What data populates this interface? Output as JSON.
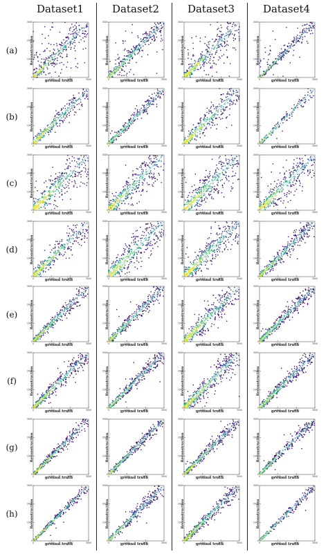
{
  "figure": {
    "columns": [
      "Dataset1",
      "Dataset2",
      "Dataset3",
      "Dataset4"
    ],
    "rows": [
      "(a)",
      "(b)",
      "(c)",
      "(d)",
      "(e)",
      "(f)",
      "(g)",
      "(h)"
    ],
    "xlabel": "ground truth",
    "ylabel": "Reconstruction"
  },
  "chart_data": {
    "type": "heatmap",
    "layout": "grid",
    "colormap": [
      "#3b0f70",
      "#2c3e8f",
      "#2a788e",
      "#22a884",
      "#7ad151",
      "#fde725"
    ],
    "diagonal_reference": true,
    "axes": {
      "xlim": [
        0,
        3000
      ],
      "ylim": [
        0,
        3000
      ],
      "xticks": [
        0,
        1000,
        2000,
        3000
      ],
      "yticks": [
        0,
        1000,
        2000,
        3000
      ]
    },
    "panels": [
      {
        "row": "(a)",
        "dataset": "Dataset1",
        "density": 1.0,
        "spread": 0.1,
        "outlier_fraction": 0.35
      },
      {
        "row": "(a)",
        "dataset": "Dataset2",
        "density": 1.0,
        "spread": 0.08,
        "outlier_fraction": 0.3
      },
      {
        "row": "(a)",
        "dataset": "Dataset3",
        "density": 1.0,
        "spread": 0.12,
        "outlier_fraction": 0.3
      },
      {
        "row": "(a)",
        "dataset": "Dataset4",
        "density": 0.8,
        "spread": 0.04,
        "outlier_fraction": 0.2
      },
      {
        "row": "(b)",
        "dataset": "Dataset1",
        "density": 0.7,
        "spread": 0.1,
        "outlier_fraction": 0.02
      },
      {
        "row": "(b)",
        "dataset": "Dataset2",
        "density": 0.7,
        "spread": 0.06,
        "outlier_fraction": 0.02
      },
      {
        "row": "(b)",
        "dataset": "Dataset3",
        "density": 0.8,
        "spread": 0.14,
        "outlier_fraction": 0.03
      },
      {
        "row": "(b)",
        "dataset": "Dataset4",
        "density": 0.4,
        "spread": 0.05,
        "outlier_fraction": 0.01
      },
      {
        "row": "(c)",
        "dataset": "Dataset1",
        "density": 1.0,
        "spread": 0.2,
        "outlier_fraction": 0.05
      },
      {
        "row": "(c)",
        "dataset": "Dataset2",
        "density": 1.0,
        "spread": 0.16,
        "outlier_fraction": 0.05
      },
      {
        "row": "(c)",
        "dataset": "Dataset3",
        "density": 1.0,
        "spread": 0.18,
        "outlier_fraction": 0.05
      },
      {
        "row": "(c)",
        "dataset": "Dataset4",
        "density": 1.0,
        "spread": 0.16,
        "outlier_fraction": 0.08
      },
      {
        "row": "(d)",
        "dataset": "Dataset1",
        "density": 0.8,
        "spread": 0.12,
        "outlier_fraction": 0.03
      },
      {
        "row": "(d)",
        "dataset": "Dataset2",
        "density": 1.0,
        "spread": 0.18,
        "outlier_fraction": 0.04
      },
      {
        "row": "(d)",
        "dataset": "Dataset3",
        "density": 1.0,
        "spread": 0.16,
        "outlier_fraction": 0.04
      },
      {
        "row": "(d)",
        "dataset": "Dataset4",
        "density": 0.9,
        "spread": 0.08,
        "outlier_fraction": 0.02
      },
      {
        "row": "(e)",
        "dataset": "Dataset1",
        "density": 0.8,
        "spread": 0.07,
        "outlier_fraction": 0.01
      },
      {
        "row": "(e)",
        "dataset": "Dataset2",
        "density": 0.9,
        "spread": 0.07,
        "outlier_fraction": 0.02
      },
      {
        "row": "(e)",
        "dataset": "Dataset3",
        "density": 1.0,
        "spread": 0.14,
        "outlier_fraction": 0.03
      },
      {
        "row": "(e)",
        "dataset": "Dataset4",
        "density": 0.9,
        "spread": 0.07,
        "outlier_fraction": 0.02
      },
      {
        "row": "(f)",
        "dataset": "Dataset1",
        "density": 0.9,
        "spread": 0.08,
        "outlier_fraction": 0.01
      },
      {
        "row": "(f)",
        "dataset": "Dataset2",
        "density": 0.9,
        "spread": 0.06,
        "outlier_fraction": 0.02
      },
      {
        "row": "(f)",
        "dataset": "Dataset3",
        "density": 1.0,
        "spread": 0.12,
        "outlier_fraction": 0.03
      },
      {
        "row": "(f)",
        "dataset": "Dataset4",
        "density": 0.9,
        "spread": 0.07,
        "outlier_fraction": 0.02
      },
      {
        "row": "(g)",
        "dataset": "Dataset1",
        "density": 0.8,
        "spread": 0.05,
        "outlier_fraction": 0.01
      },
      {
        "row": "(g)",
        "dataset": "Dataset2",
        "density": 0.8,
        "spread": 0.05,
        "outlier_fraction": 0.01
      },
      {
        "row": "(g)",
        "dataset": "Dataset3",
        "density": 0.8,
        "spread": 0.06,
        "outlier_fraction": 0.02
      },
      {
        "row": "(g)",
        "dataset": "Dataset4",
        "density": 0.8,
        "spread": 0.05,
        "outlier_fraction": 0.01
      },
      {
        "row": "(h)",
        "dataset": "Dataset1",
        "density": 0.7,
        "spread": 0.04,
        "outlier_fraction": 0.01
      },
      {
        "row": "(h)",
        "dataset": "Dataset2",
        "density": 0.8,
        "spread": 0.06,
        "outlier_fraction": 0.02
      },
      {
        "row": "(h)",
        "dataset": "Dataset3",
        "density": 0.9,
        "spread": 0.07,
        "outlier_fraction": 0.02
      },
      {
        "row": "(h)",
        "dataset": "Dataset4",
        "density": 0.6,
        "spread": 0.04,
        "outlier_fraction": 0.01
      }
    ]
  }
}
